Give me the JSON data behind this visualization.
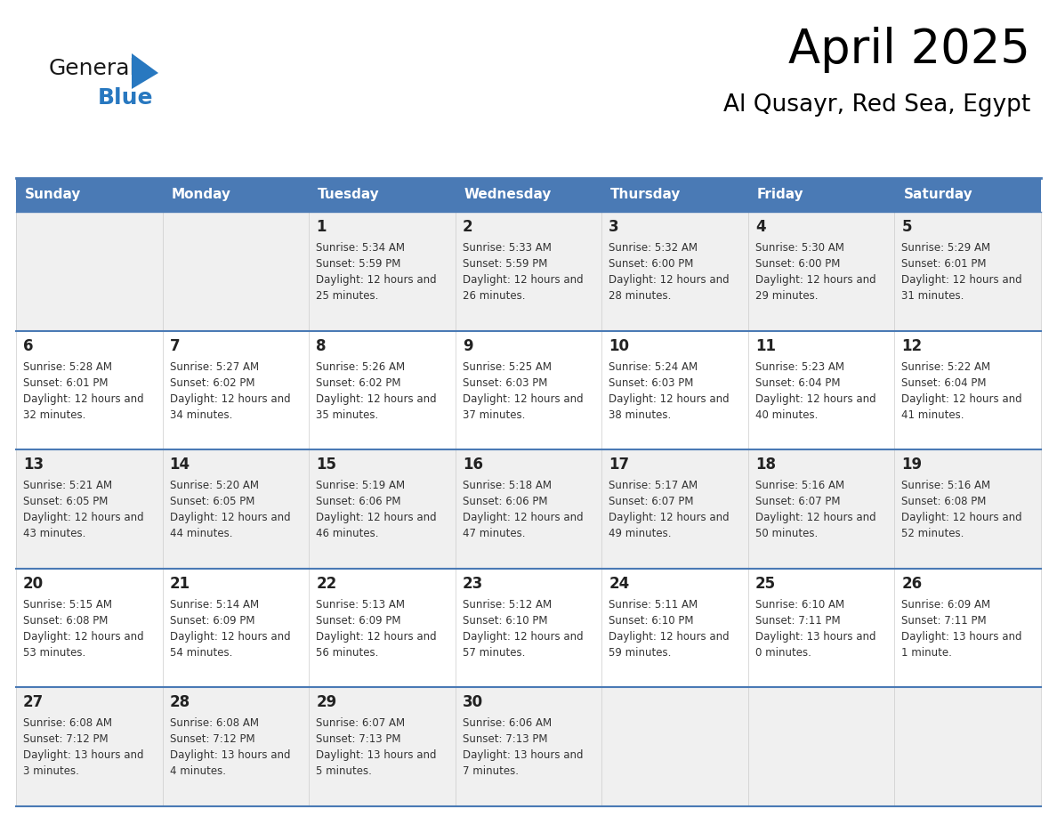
{
  "title": "April 2025",
  "subtitle": "Al Qusayr, Red Sea, Egypt",
  "days_of_week": [
    "Sunday",
    "Monday",
    "Tuesday",
    "Wednesday",
    "Thursday",
    "Friday",
    "Saturday"
  ],
  "header_bg": "#4a7ab5",
  "header_text": "#ffffff",
  "row_bg_light": "#f0f0f0",
  "row_bg_white": "#ffffff",
  "cell_text_color": "#333333",
  "day_num_color": "#222222",
  "grid_line_color": "#4a7ab5",
  "logo_general_color": "#1a1a1a",
  "logo_blue_color": "#2878c0",
  "calendar_data": [
    [
      null,
      null,
      {
        "day": 1,
        "sunrise": "5:34 AM",
        "sunset": "5:59 PM",
        "daylight": "12 hours and 25 minutes"
      },
      {
        "day": 2,
        "sunrise": "5:33 AM",
        "sunset": "5:59 PM",
        "daylight": "12 hours and 26 minutes"
      },
      {
        "day": 3,
        "sunrise": "5:32 AM",
        "sunset": "6:00 PM",
        "daylight": "12 hours and 28 minutes"
      },
      {
        "day": 4,
        "sunrise": "5:30 AM",
        "sunset": "6:00 PM",
        "daylight": "12 hours and 29 minutes"
      },
      {
        "day": 5,
        "sunrise": "5:29 AM",
        "sunset": "6:01 PM",
        "daylight": "12 hours and 31 minutes"
      }
    ],
    [
      {
        "day": 6,
        "sunrise": "5:28 AM",
        "sunset": "6:01 PM",
        "daylight": "12 hours and 32 minutes"
      },
      {
        "day": 7,
        "sunrise": "5:27 AM",
        "sunset": "6:02 PM",
        "daylight": "12 hours and 34 minutes"
      },
      {
        "day": 8,
        "sunrise": "5:26 AM",
        "sunset": "6:02 PM",
        "daylight": "12 hours and 35 minutes"
      },
      {
        "day": 9,
        "sunrise": "5:25 AM",
        "sunset": "6:03 PM",
        "daylight": "12 hours and 37 minutes"
      },
      {
        "day": 10,
        "sunrise": "5:24 AM",
        "sunset": "6:03 PM",
        "daylight": "12 hours and 38 minutes"
      },
      {
        "day": 11,
        "sunrise": "5:23 AM",
        "sunset": "6:04 PM",
        "daylight": "12 hours and 40 minutes"
      },
      {
        "day": 12,
        "sunrise": "5:22 AM",
        "sunset": "6:04 PM",
        "daylight": "12 hours and 41 minutes"
      }
    ],
    [
      {
        "day": 13,
        "sunrise": "5:21 AM",
        "sunset": "6:05 PM",
        "daylight": "12 hours and 43 minutes"
      },
      {
        "day": 14,
        "sunrise": "5:20 AM",
        "sunset": "6:05 PM",
        "daylight": "12 hours and 44 minutes"
      },
      {
        "day": 15,
        "sunrise": "5:19 AM",
        "sunset": "6:06 PM",
        "daylight": "12 hours and 46 minutes"
      },
      {
        "day": 16,
        "sunrise": "5:18 AM",
        "sunset": "6:06 PM",
        "daylight": "12 hours and 47 minutes"
      },
      {
        "day": 17,
        "sunrise": "5:17 AM",
        "sunset": "6:07 PM",
        "daylight": "12 hours and 49 minutes"
      },
      {
        "day": 18,
        "sunrise": "5:16 AM",
        "sunset": "6:07 PM",
        "daylight": "12 hours and 50 minutes"
      },
      {
        "day": 19,
        "sunrise": "5:16 AM",
        "sunset": "6:08 PM",
        "daylight": "12 hours and 52 minutes"
      }
    ],
    [
      {
        "day": 20,
        "sunrise": "5:15 AM",
        "sunset": "6:08 PM",
        "daylight": "12 hours and 53 minutes"
      },
      {
        "day": 21,
        "sunrise": "5:14 AM",
        "sunset": "6:09 PM",
        "daylight": "12 hours and 54 minutes"
      },
      {
        "day": 22,
        "sunrise": "5:13 AM",
        "sunset": "6:09 PM",
        "daylight": "12 hours and 56 minutes"
      },
      {
        "day": 23,
        "sunrise": "5:12 AM",
        "sunset": "6:10 PM",
        "daylight": "12 hours and 57 minutes"
      },
      {
        "day": 24,
        "sunrise": "5:11 AM",
        "sunset": "6:10 PM",
        "daylight": "12 hours and 59 minutes"
      },
      {
        "day": 25,
        "sunrise": "6:10 AM",
        "sunset": "7:11 PM",
        "daylight": "13 hours and 0 minutes"
      },
      {
        "day": 26,
        "sunrise": "6:09 AM",
        "sunset": "7:11 PM",
        "daylight": "13 hours and 1 minute"
      }
    ],
    [
      {
        "day": 27,
        "sunrise": "6:08 AM",
        "sunset": "7:12 PM",
        "daylight": "13 hours and 3 minutes"
      },
      {
        "day": 28,
        "sunrise": "6:08 AM",
        "sunset": "7:12 PM",
        "daylight": "13 hours and 4 minutes"
      },
      {
        "day": 29,
        "sunrise": "6:07 AM",
        "sunset": "7:13 PM",
        "daylight": "13 hours and 5 minutes"
      },
      {
        "day": 30,
        "sunrise": "6:06 AM",
        "sunset": "7:13 PM",
        "daylight": "13 hours and 7 minutes"
      },
      null,
      null,
      null
    ]
  ]
}
